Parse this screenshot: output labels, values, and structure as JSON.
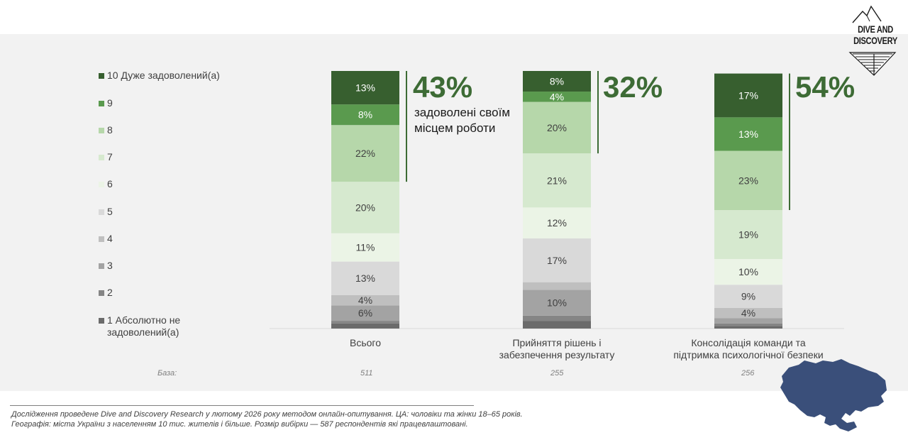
{
  "logo": {
    "line1": "DIVE AND",
    "line2": "DISCOVERY"
  },
  "legend": [
    {
      "label": "10 Дуже задоволений(а)",
      "color": "#375f2f"
    },
    {
      "label": "9",
      "color": "#5a9a4e"
    },
    {
      "label": "8",
      "color": "#b6d7aa"
    },
    {
      "label": "7",
      "color": "#d6e9cf"
    },
    {
      "label": "6",
      "color": "#ebf4e6"
    },
    {
      "label": "5",
      "color": "#d9d9d9"
    },
    {
      "label": "4",
      "color": "#bfbfbf"
    },
    {
      "label": "3",
      "color": "#a3a3a3"
    },
    {
      "label": "2",
      "color": "#858585"
    },
    {
      "label": "1 Абсолютно не задоволений(а)",
      "color": "#6b6b6b"
    }
  ],
  "chart_data": {
    "type": "bar",
    "stacked": true,
    "unit": "%",
    "series_order_bottom_to_top": [
      "1",
      "2",
      "3",
      "4",
      "5",
      "6",
      "7",
      "8",
      "9",
      "10"
    ],
    "categories": [
      "Всього",
      "Прийняття рішень і забезпечення результату",
      "Консолідація команди та підтримка психологічної безпеки"
    ],
    "series": [
      {
        "name": "1 Абсолютно не задоволений(а)",
        "values": [
          2,
          3,
          1
        ]
      },
      {
        "name": "2",
        "values": [
          1,
          2,
          1
        ]
      },
      {
        "name": "3",
        "values": [
          6,
          10,
          2
        ]
      },
      {
        "name": "4",
        "values": [
          4,
          3,
          4
        ]
      },
      {
        "name": "5",
        "values": [
          13,
          17,
          9
        ]
      },
      {
        "name": "6",
        "values": [
          11,
          12,
          10
        ]
      },
      {
        "name": "7",
        "values": [
          20,
          21,
          19
        ]
      },
      {
        "name": "8",
        "values": [
          22,
          20,
          23
        ]
      },
      {
        "name": "9",
        "values": [
          8,
          4,
          13
        ]
      },
      {
        "name": "10 Дуже задоволений(а)",
        "values": [
          13,
          8,
          17
        ]
      }
    ],
    "data_labels": [
      [
        "",
        "",
        "6%",
        "4%",
        "13%",
        "11%",
        "20%",
        "22%",
        "8%",
        "13%"
      ],
      [
        "",
        "",
        "10%",
        "",
        "17%",
        "12%",
        "21%",
        "20%",
        "4%",
        "8%"
      ],
      [
        "",
        "",
        "",
        "4%",
        "9%",
        "10%",
        "19%",
        "23%",
        "13%",
        "17%"
      ]
    ],
    "top_box_totals": [
      "43%",
      "32%",
      "54%"
    ],
    "top_box_note": "задоволені своїм місцем роботи",
    "base_label": "База:",
    "bases": [
      "511",
      "255",
      "256"
    ],
    "ylim": [
      0,
      100
    ]
  },
  "category_labels": {
    "total": "Всього",
    "cat2_line1": "Прийняття рішень і",
    "cat2_line2": "забезпечення результату",
    "cat3_line1": "Консолідація команди та",
    "cat3_line2": "підтримка психологічної безпеки"
  },
  "footnote": {
    "line1": "Дослідження проведене Dive and Discovery Research у лютому  2026 року  методом онлайн-опитування. ЦА: чоловіки та жінки 18–65 років.",
    "line2": "Географія: міста України з населенням 10 тис. жителів і більше. Розмір вибірки — 587 респондентів які працевлаштовані."
  }
}
